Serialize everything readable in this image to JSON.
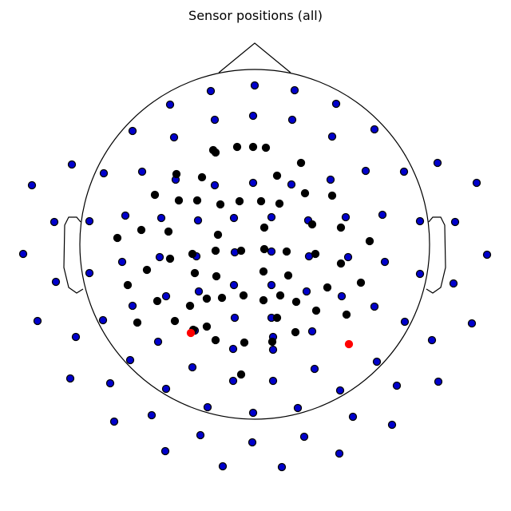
{
  "chart_data": {
    "type": "scatter",
    "title": "Sensor positions (all)",
    "xlabel": "",
    "ylabel": "",
    "grid": false,
    "legend": "none",
    "head_outline": {
      "shape": "circle",
      "nose": true,
      "ears": true,
      "color": "#000000"
    },
    "series": [
      {
        "marker": "circle",
        "color": "#0000cc",
        "edgecolor": "#000000",
        "points": [
          [
            319,
            107
          ],
          [
            264,
            114
          ],
          [
            369,
            113
          ],
          [
            213,
            131
          ],
          [
            421,
            130
          ],
          [
            269,
            150
          ],
          [
            317,
            145
          ],
          [
            366,
            150
          ],
          [
            166,
            164
          ],
          [
            469,
            162
          ],
          [
            218,
            172
          ],
          [
            416,
            171
          ],
          [
            90,
            206
          ],
          [
            548,
            204
          ],
          [
            130,
            217
          ],
          [
            178,
            215
          ],
          [
            458,
            214
          ],
          [
            506,
            215
          ],
          [
            40,
            232
          ],
          [
            597,
            229
          ],
          [
            220,
            225
          ],
          [
            414,
            225
          ],
          [
            269,
            232
          ],
          [
            317,
            229
          ],
          [
            365,
            231
          ],
          [
            157,
            270
          ],
          [
            202,
            273
          ],
          [
            248,
            276
          ],
          [
            293,
            273
          ],
          [
            340,
            272
          ],
          [
            386,
            276
          ],
          [
            433,
            272
          ],
          [
            479,
            269
          ],
          [
            68,
            278
          ],
          [
            112,
            277
          ],
          [
            526,
            277
          ],
          [
            570,
            278
          ],
          [
            29,
            318
          ],
          [
            610,
            319
          ],
          [
            200,
            322
          ],
          [
            246,
            321
          ],
          [
            294,
            316
          ],
          [
            340,
            315
          ],
          [
            387,
            321
          ],
          [
            436,
            322
          ],
          [
            153,
            328
          ],
          [
            482,
            328
          ],
          [
            112,
            342
          ],
          [
            526,
            343
          ],
          [
            70,
            353
          ],
          [
            568,
            355
          ],
          [
            249,
            365
          ],
          [
            293,
            357
          ],
          [
            340,
            357
          ],
          [
            384,
            365
          ],
          [
            208,
            371
          ],
          [
            428,
            371
          ],
          [
            166,
            383
          ],
          [
            469,
            384
          ],
          [
            47,
            402
          ],
          [
            591,
            405
          ],
          [
            129,
            401
          ],
          [
            507,
            403
          ],
          [
            294,
            398
          ],
          [
            340,
            398
          ],
          [
            342,
            422
          ],
          [
            391,
            415
          ],
          [
            244,
            414
          ],
          [
            95,
            422
          ],
          [
            541,
            426
          ],
          [
            198,
            428
          ],
          [
            292,
            437
          ],
          [
            342,
            438
          ],
          [
            163,
            451
          ],
          [
            472,
            453
          ],
          [
            241,
            460
          ],
          [
            394,
            462
          ],
          [
            88,
            474
          ],
          [
            549,
            478
          ],
          [
            138,
            480
          ],
          [
            292,
            477
          ],
          [
            342,
            477
          ],
          [
            208,
            487
          ],
          [
            426,
            489
          ],
          [
            497,
            483
          ],
          [
            260,
            510
          ],
          [
            317,
            517
          ],
          [
            373,
            511
          ],
          [
            143,
            528
          ],
          [
            190,
            520
          ],
          [
            442,
            522
          ],
          [
            491,
            532
          ],
          [
            251,
            545
          ],
          [
            316,
            554
          ],
          [
            381,
            547
          ],
          [
            207,
            565
          ],
          [
            425,
            568
          ],
          [
            279,
            584
          ],
          [
            353,
            585
          ]
        ]
      },
      {
        "marker": "circle",
        "color": "#000000",
        "edgecolor": "#000000",
        "points": [
          [
            267,
            188
          ],
          [
            270,
            191
          ],
          [
            297,
            184
          ],
          [
            317,
            184
          ],
          [
            333,
            185
          ],
          [
            377,
            204
          ],
          [
            221,
            218
          ],
          [
            253,
            222
          ],
          [
            347,
            220
          ],
          [
            194,
            244
          ],
          [
            224,
            251
          ],
          [
            247,
            251
          ],
          [
            276,
            256
          ],
          [
            300,
            252
          ],
          [
            327,
            252
          ],
          [
            350,
            255
          ],
          [
            382,
            242
          ],
          [
            416,
            245
          ],
          [
            391,
            281
          ],
          [
            427,
            285
          ],
          [
            331,
            285
          ],
          [
            177,
            288
          ],
          [
            211,
            290
          ],
          [
            273,
            294
          ],
          [
            147,
            298
          ],
          [
            463,
            302
          ],
          [
            270,
            314
          ],
          [
            302,
            314
          ],
          [
            331,
            312
          ],
          [
            359,
            315
          ],
          [
            395,
            318
          ],
          [
            427,
            330
          ],
          [
            241,
            318
          ],
          [
            213,
            324
          ],
          [
            184,
            338
          ],
          [
            244,
            342
          ],
          [
            271,
            346
          ],
          [
            330,
            340
          ],
          [
            361,
            345
          ],
          [
            410,
            360
          ],
          [
            452,
            354
          ],
          [
            160,
            357
          ],
          [
            259,
            374
          ],
          [
            278,
            373
          ],
          [
            305,
            370
          ],
          [
            330,
            376
          ],
          [
            351,
            370
          ],
          [
            371,
            378
          ],
          [
            238,
            383
          ],
          [
            197,
            377
          ],
          [
            396,
            389
          ],
          [
            434,
            394
          ],
          [
            172,
            404
          ],
          [
            219,
            402
          ],
          [
            259,
            409
          ],
          [
            347,
            398
          ],
          [
            242,
            413
          ],
          [
            370,
            416
          ],
          [
            270,
            426
          ],
          [
            306,
            429
          ],
          [
            341,
            428
          ],
          [
            302,
            469
          ]
        ]
      },
      {
        "marker": "circle",
        "color": "#ff0000",
        "edgecolor": "#ff0000",
        "points": [
          [
            239,
            417
          ],
          [
            437,
            431
          ]
        ]
      }
    ]
  }
}
